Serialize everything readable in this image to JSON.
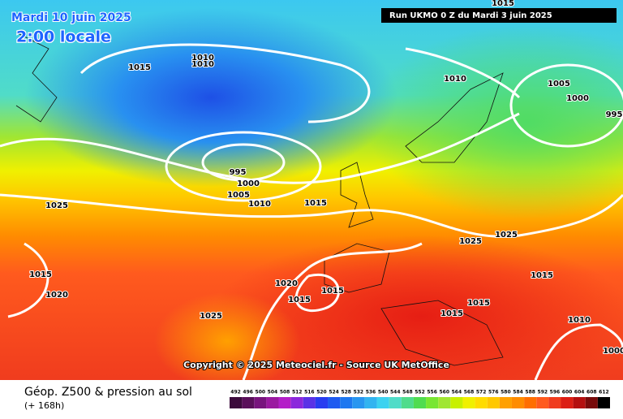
{
  "header": {
    "date": "Mardi 10 juin 2025",
    "local_time": "2:00 locale",
    "run": "Run UKMO 0 Z du Mardi 3 juin 2025"
  },
  "isobar_labels": [
    "1015",
    "1010",
    "1010",
    "1010",
    "1005",
    "1000",
    "995",
    "995",
    "1000",
    "1005",
    "1010",
    "1015",
    "1025",
    "1025",
    "1025",
    "1015",
    "1020",
    "1020",
    "1015",
    "1015",
    "1015",
    "1015",
    "1015",
    "1010",
    "1025",
    "1000",
    "1015"
  ],
  "copyright": "Copyright © 2025 Meteociel.fr - Source UK MetOffice",
  "footer": {
    "title": "Géop. Z500 & pression au sol",
    "subtitle": "(+ 168h)"
  },
  "scale": {
    "values": [
      492,
      496,
      500,
      504,
      508,
      512,
      516,
      520,
      524,
      528,
      532,
      536,
      540,
      544,
      548,
      552,
      556,
      560,
      564,
      568,
      572,
      576,
      580,
      584,
      588,
      592,
      596,
      600,
      604,
      608,
      612
    ],
    "colors": [
      "#3c0a3c",
      "#5a0f5a",
      "#78147d",
      "#9b19a0",
      "#b41ec8",
      "#8c28dc",
      "#5a32e6",
      "#283cf0",
      "#1e5af0",
      "#1e78f0",
      "#2896f0",
      "#32b4f0",
      "#3cd2f0",
      "#50dcc8",
      "#50dc8c",
      "#50dc50",
      "#78e632",
      "#a0e632",
      "#c8f000",
      "#f0f000",
      "#ffdc00",
      "#ffc800",
      "#ffa000",
      "#ff8c00",
      "#ff6e00",
      "#ff5a1e",
      "#f03c1e",
      "#dc1e14",
      "#b40f0f",
      "#780a0a",
      "#000000"
    ]
  }
}
